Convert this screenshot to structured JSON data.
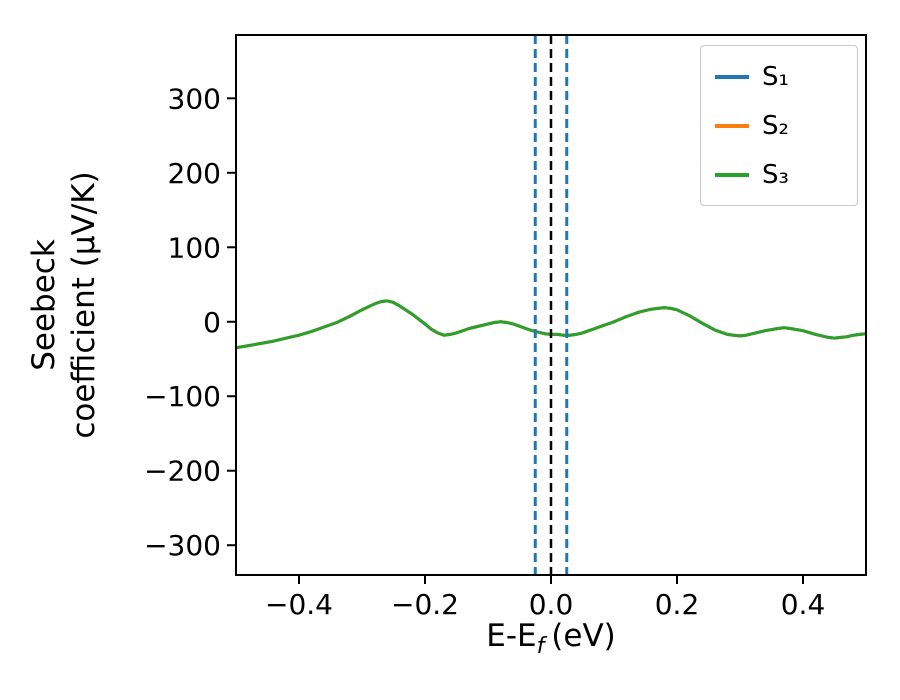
{
  "figure": {
    "background": "#ffffff",
    "axis_color": "#000000"
  },
  "chart_data": {
    "type": "line",
    "title": "",
    "xlabel": {
      "pre": "E-E",
      "sub": "f",
      "post": "(eV)"
    },
    "ylabel_line1": "Seebeck",
    "ylabel_line2": "coefficient  (μV/K)",
    "xlim": [
      -0.5,
      0.5
    ],
    "ylim": [
      -340,
      385
    ],
    "grid": false,
    "legend_position": "upper right",
    "xticks": [
      {
        "value": -0.4,
        "label": "−0.4"
      },
      {
        "value": -0.2,
        "label": "−0.2"
      },
      {
        "value": 0.0,
        "label": "0.0"
      },
      {
        "value": 0.2,
        "label": "0.2"
      },
      {
        "value": 0.4,
        "label": "0.4"
      }
    ],
    "yticks": [
      {
        "value": 300,
        "label": "300"
      },
      {
        "value": 200,
        "label": "200"
      },
      {
        "value": 100,
        "label": "100"
      },
      {
        "value": 0,
        "label": "0"
      },
      {
        "value": -100,
        "label": "−100"
      },
      {
        "value": -200,
        "label": "−200"
      },
      {
        "value": -300,
        "label": "−300"
      }
    ],
    "shared_points": [
      [
        -0.5,
        -35
      ],
      [
        -0.48,
        -32
      ],
      [
        -0.46,
        -29
      ],
      [
        -0.44,
        -26
      ],
      [
        -0.42,
        -22
      ],
      [
        -0.4,
        -18
      ],
      [
        -0.38,
        -13
      ],
      [
        -0.36,
        -7
      ],
      [
        -0.34,
        -1
      ],
      [
        -0.32,
        7
      ],
      [
        -0.3,
        16
      ],
      [
        -0.28,
        24
      ],
      [
        -0.27,
        27
      ],
      [
        -0.26,
        28
      ],
      [
        -0.25,
        26
      ],
      [
        -0.24,
        21
      ],
      [
        -0.22,
        10
      ],
      [
        -0.2,
        -3
      ],
      [
        -0.19,
        -10
      ],
      [
        -0.18,
        -15
      ],
      [
        -0.17,
        -18
      ],
      [
        -0.16,
        -17
      ],
      [
        -0.15,
        -15
      ],
      [
        -0.13,
        -9
      ],
      [
        -0.11,
        -5
      ],
      [
        -0.1,
        -3
      ],
      [
        -0.09,
        -1
      ],
      [
        -0.08,
        0
      ],
      [
        -0.07,
        -1
      ],
      [
        -0.06,
        -3
      ],
      [
        -0.05,
        -6
      ],
      [
        -0.04,
        -9
      ],
      [
        -0.03,
        -12
      ],
      [
        -0.02,
        -14
      ],
      [
        -0.01,
        -16
      ],
      [
        0.0,
        -17
      ],
      [
        0.01,
        -17
      ],
      [
        0.02,
        -18
      ],
      [
        0.03,
        -18
      ],
      [
        0.04,
        -17
      ],
      [
        0.05,
        -15
      ],
      [
        0.06,
        -12
      ],
      [
        0.07,
        -9
      ],
      [
        0.08,
        -6
      ],
      [
        0.09,
        -3
      ],
      [
        0.1,
        0
      ],
      [
        0.12,
        7
      ],
      [
        0.14,
        13
      ],
      [
        0.16,
        17
      ],
      [
        0.17,
        18
      ],
      [
        0.18,
        19
      ],
      [
        0.19,
        18
      ],
      [
        0.2,
        16
      ],
      [
        0.22,
        8
      ],
      [
        0.24,
        -2
      ],
      [
        0.26,
        -11
      ],
      [
        0.27,
        -14
      ],
      [
        0.28,
        -17
      ],
      [
        0.29,
        -18
      ],
      [
        0.3,
        -19
      ],
      [
        0.31,
        -18
      ],
      [
        0.32,
        -16
      ],
      [
        0.34,
        -12
      ],
      [
        0.36,
        -9
      ],
      [
        0.37,
        -8
      ],
      [
        0.38,
        -9
      ],
      [
        0.4,
        -12
      ],
      [
        0.42,
        -17
      ],
      [
        0.43,
        -19
      ],
      [
        0.44,
        -21
      ],
      [
        0.45,
        -22
      ],
      [
        0.46,
        -21
      ],
      [
        0.47,
        -20
      ],
      [
        0.48,
        -18
      ],
      [
        0.49,
        -17
      ],
      [
        0.5,
        -16
      ]
    ],
    "series": [
      {
        "name": "S₁",
        "color": "#1f77b4",
        "points": "shared"
      },
      {
        "name": "S₂",
        "color": "#ff7f0e",
        "points": "shared"
      },
      {
        "name": "S₃",
        "color": "#2ca02c",
        "points": "shared"
      }
    ],
    "vlines": [
      {
        "name": "vline-blue-left",
        "x": -0.025,
        "color": "#1f77b4",
        "width": 3,
        "dash": "9,5"
      },
      {
        "name": "vline-black-center",
        "x": 0.0,
        "color": "#000000",
        "width": 2.5,
        "dash": "9,5"
      },
      {
        "name": "vline-blue-right",
        "x": 0.025,
        "color": "#1f77b4",
        "width": 3,
        "dash": "9,5"
      }
    ],
    "legend": [
      {
        "label": "S₁",
        "color": "#1f77b4"
      },
      {
        "label": "S₂",
        "color": "#ff7f0e"
      },
      {
        "label": "S₃",
        "color": "#2ca02c"
      }
    ]
  }
}
